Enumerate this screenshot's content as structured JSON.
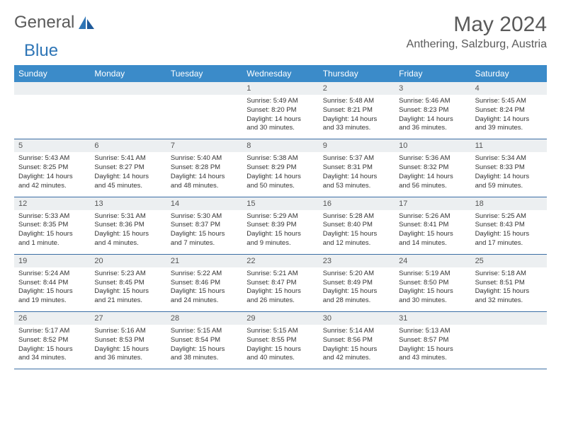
{
  "brand": {
    "part1": "General",
    "part2": "Blue"
  },
  "title": "May 2024",
  "location": "Anthering, Salzburg, Austria",
  "dayHeaders": [
    "Sunday",
    "Monday",
    "Tuesday",
    "Wednesday",
    "Thursday",
    "Friday",
    "Saturday"
  ],
  "colors": {
    "headerBg": "#3b8bc9",
    "headerText": "#ffffff",
    "weekRule": "#3b6ea5",
    "daynumBg": "#eceff1",
    "text": "#333333",
    "brandAccent": "#2e75b6"
  },
  "weeks": [
    [
      {
        "day": "",
        "lines": []
      },
      {
        "day": "",
        "lines": []
      },
      {
        "day": "",
        "lines": []
      },
      {
        "day": "1",
        "lines": [
          "Sunrise: 5:49 AM",
          "Sunset: 8:20 PM",
          "Daylight: 14 hours",
          "and 30 minutes."
        ]
      },
      {
        "day": "2",
        "lines": [
          "Sunrise: 5:48 AM",
          "Sunset: 8:21 PM",
          "Daylight: 14 hours",
          "and 33 minutes."
        ]
      },
      {
        "day": "3",
        "lines": [
          "Sunrise: 5:46 AM",
          "Sunset: 8:23 PM",
          "Daylight: 14 hours",
          "and 36 minutes."
        ]
      },
      {
        "day": "4",
        "lines": [
          "Sunrise: 5:45 AM",
          "Sunset: 8:24 PM",
          "Daylight: 14 hours",
          "and 39 minutes."
        ]
      }
    ],
    [
      {
        "day": "5",
        "lines": [
          "Sunrise: 5:43 AM",
          "Sunset: 8:25 PM",
          "Daylight: 14 hours",
          "and 42 minutes."
        ]
      },
      {
        "day": "6",
        "lines": [
          "Sunrise: 5:41 AM",
          "Sunset: 8:27 PM",
          "Daylight: 14 hours",
          "and 45 minutes."
        ]
      },
      {
        "day": "7",
        "lines": [
          "Sunrise: 5:40 AM",
          "Sunset: 8:28 PM",
          "Daylight: 14 hours",
          "and 48 minutes."
        ]
      },
      {
        "day": "8",
        "lines": [
          "Sunrise: 5:38 AM",
          "Sunset: 8:29 PM",
          "Daylight: 14 hours",
          "and 50 minutes."
        ]
      },
      {
        "day": "9",
        "lines": [
          "Sunrise: 5:37 AM",
          "Sunset: 8:31 PM",
          "Daylight: 14 hours",
          "and 53 minutes."
        ]
      },
      {
        "day": "10",
        "lines": [
          "Sunrise: 5:36 AM",
          "Sunset: 8:32 PM",
          "Daylight: 14 hours",
          "and 56 minutes."
        ]
      },
      {
        "day": "11",
        "lines": [
          "Sunrise: 5:34 AM",
          "Sunset: 8:33 PM",
          "Daylight: 14 hours",
          "and 59 minutes."
        ]
      }
    ],
    [
      {
        "day": "12",
        "lines": [
          "Sunrise: 5:33 AM",
          "Sunset: 8:35 PM",
          "Daylight: 15 hours",
          "and 1 minute."
        ]
      },
      {
        "day": "13",
        "lines": [
          "Sunrise: 5:31 AM",
          "Sunset: 8:36 PM",
          "Daylight: 15 hours",
          "and 4 minutes."
        ]
      },
      {
        "day": "14",
        "lines": [
          "Sunrise: 5:30 AM",
          "Sunset: 8:37 PM",
          "Daylight: 15 hours",
          "and 7 minutes."
        ]
      },
      {
        "day": "15",
        "lines": [
          "Sunrise: 5:29 AM",
          "Sunset: 8:39 PM",
          "Daylight: 15 hours",
          "and 9 minutes."
        ]
      },
      {
        "day": "16",
        "lines": [
          "Sunrise: 5:28 AM",
          "Sunset: 8:40 PM",
          "Daylight: 15 hours",
          "and 12 minutes."
        ]
      },
      {
        "day": "17",
        "lines": [
          "Sunrise: 5:26 AM",
          "Sunset: 8:41 PM",
          "Daylight: 15 hours",
          "and 14 minutes."
        ]
      },
      {
        "day": "18",
        "lines": [
          "Sunrise: 5:25 AM",
          "Sunset: 8:43 PM",
          "Daylight: 15 hours",
          "and 17 minutes."
        ]
      }
    ],
    [
      {
        "day": "19",
        "lines": [
          "Sunrise: 5:24 AM",
          "Sunset: 8:44 PM",
          "Daylight: 15 hours",
          "and 19 minutes."
        ]
      },
      {
        "day": "20",
        "lines": [
          "Sunrise: 5:23 AM",
          "Sunset: 8:45 PM",
          "Daylight: 15 hours",
          "and 21 minutes."
        ]
      },
      {
        "day": "21",
        "lines": [
          "Sunrise: 5:22 AM",
          "Sunset: 8:46 PM",
          "Daylight: 15 hours",
          "and 24 minutes."
        ]
      },
      {
        "day": "22",
        "lines": [
          "Sunrise: 5:21 AM",
          "Sunset: 8:47 PM",
          "Daylight: 15 hours",
          "and 26 minutes."
        ]
      },
      {
        "day": "23",
        "lines": [
          "Sunrise: 5:20 AM",
          "Sunset: 8:49 PM",
          "Daylight: 15 hours",
          "and 28 minutes."
        ]
      },
      {
        "day": "24",
        "lines": [
          "Sunrise: 5:19 AM",
          "Sunset: 8:50 PM",
          "Daylight: 15 hours",
          "and 30 minutes."
        ]
      },
      {
        "day": "25",
        "lines": [
          "Sunrise: 5:18 AM",
          "Sunset: 8:51 PM",
          "Daylight: 15 hours",
          "and 32 minutes."
        ]
      }
    ],
    [
      {
        "day": "26",
        "lines": [
          "Sunrise: 5:17 AM",
          "Sunset: 8:52 PM",
          "Daylight: 15 hours",
          "and 34 minutes."
        ]
      },
      {
        "day": "27",
        "lines": [
          "Sunrise: 5:16 AM",
          "Sunset: 8:53 PM",
          "Daylight: 15 hours",
          "and 36 minutes."
        ]
      },
      {
        "day": "28",
        "lines": [
          "Sunrise: 5:15 AM",
          "Sunset: 8:54 PM",
          "Daylight: 15 hours",
          "and 38 minutes."
        ]
      },
      {
        "day": "29",
        "lines": [
          "Sunrise: 5:15 AM",
          "Sunset: 8:55 PM",
          "Daylight: 15 hours",
          "and 40 minutes."
        ]
      },
      {
        "day": "30",
        "lines": [
          "Sunrise: 5:14 AM",
          "Sunset: 8:56 PM",
          "Daylight: 15 hours",
          "and 42 minutes."
        ]
      },
      {
        "day": "31",
        "lines": [
          "Sunrise: 5:13 AM",
          "Sunset: 8:57 PM",
          "Daylight: 15 hours",
          "and 43 minutes."
        ]
      },
      {
        "day": "",
        "lines": []
      }
    ]
  ]
}
